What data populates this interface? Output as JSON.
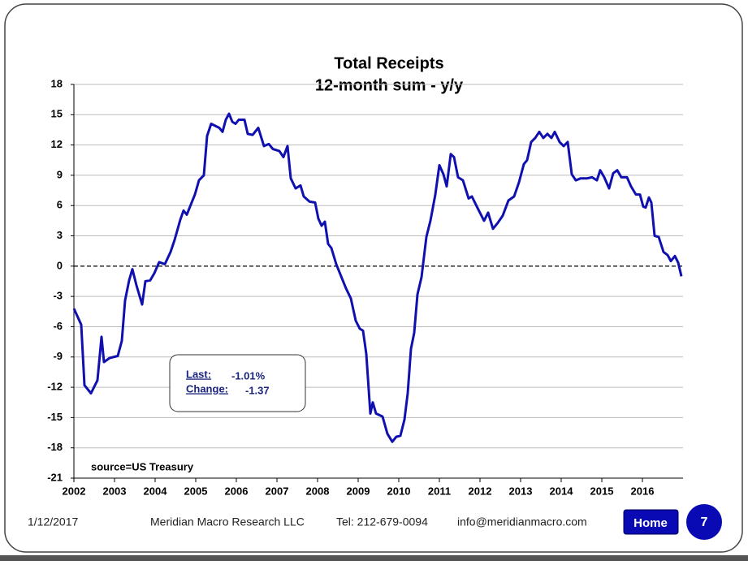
{
  "chart_data": {
    "type": "line",
    "title": [
      "Total Receipts",
      "12-month sum -  y/y"
    ],
    "source": "source=US Treasury",
    "annotation": {
      "last_label": "Last:",
      "last_value": "-1.01%",
      "change_label": "Change:",
      "change_value": "-1.37"
    },
    "series": [
      {
        "name": "Total Receipts",
        "color": "#1010b0",
        "x": [
          2002.0,
          2002.18,
          2002.26,
          2002.42,
          2002.58,
          2002.68,
          2002.74,
          2002.88,
          2003.08,
          2003.18,
          2003.26,
          2003.36,
          2003.44,
          2003.54,
          2003.68,
          2003.76,
          2003.88,
          2003.98,
          2004.1,
          2004.24,
          2004.38,
          2004.48,
          2004.62,
          2004.7,
          2004.78,
          2004.98,
          2005.08,
          2005.2,
          2005.28,
          2005.38,
          2005.58,
          2005.66,
          2005.74,
          2005.82,
          2005.9,
          2005.98,
          2006.06,
          2006.2,
          2006.28,
          2006.4,
          2006.54,
          2006.68,
          2006.8,
          2006.9,
          2007.06,
          2007.16,
          2007.26,
          2007.34,
          2007.46,
          2007.58,
          2007.66,
          2007.8,
          2007.94,
          2008.02,
          2008.1,
          2008.18,
          2008.26,
          2008.34,
          2008.46,
          2008.58,
          2008.7,
          2008.82,
          2008.94,
          2009.04,
          2009.12,
          2009.2,
          2009.3,
          2009.36,
          2009.44,
          2009.6,
          2009.72,
          2009.84,
          2009.94,
          2010.04,
          2010.14,
          2010.22,
          2010.3,
          2010.38,
          2010.46,
          2010.56,
          2010.68,
          2010.78,
          2010.9,
          2011.0,
          2011.1,
          2011.18,
          2011.28,
          2011.36,
          2011.46,
          2011.58,
          2011.72,
          2011.8,
          2011.96,
          2012.1,
          2012.2,
          2012.32,
          2012.44,
          2012.56,
          2012.7,
          2012.84,
          2012.96,
          2013.08,
          2013.16,
          2013.26,
          2013.36,
          2013.46,
          2013.56,
          2013.66,
          2013.76,
          2013.84,
          2013.96,
          2014.06,
          2014.16,
          2014.26,
          2014.36,
          2014.48,
          2014.64,
          2014.76,
          2014.88,
          2014.96,
          2015.06,
          2015.18,
          2015.28,
          2015.38,
          2015.48,
          2015.62,
          2015.72,
          2015.84,
          2015.94,
          2016.02,
          2016.08,
          2016.16,
          2016.22,
          2016.3,
          2016.4,
          2016.52,
          2016.62,
          2016.7,
          2016.8,
          2016.88,
          2016.96
        ],
        "values": [
          -4.2,
          -5.8,
          -11.8,
          -12.6,
          -11.3,
          -7,
          -9.5,
          -9.1,
          -8.9,
          -7.4,
          -3.4,
          -1.4,
          -0.3,
          -1.9,
          -3.8,
          -1.5,
          -1.4,
          -0.7,
          0.4,
          0.2,
          1.4,
          2.6,
          4.6,
          5.5,
          5.1,
          7.1,
          8.5,
          9,
          12.9,
          14.1,
          13.7,
          13.3,
          14.5,
          15.1,
          14.3,
          14.1,
          14.5,
          14.5,
          13.1,
          13,
          13.7,
          11.9,
          12.1,
          11.6,
          11.4,
          10.8,
          11.9,
          8.7,
          7.7,
          8,
          6.9,
          6.4,
          6.3,
          4.7,
          4,
          4.4,
          2.2,
          1.8,
          0.2,
          -1,
          -2.2,
          -3.2,
          -5.4,
          -6.2,
          -6.4,
          -8.7,
          -14.6,
          -13.5,
          -14.6,
          -14.9,
          -16.6,
          -17.4,
          -16.9,
          -16.8,
          -15.2,
          -12.6,
          -8.2,
          -6.6,
          -2.8,
          -1.1,
          2.9,
          4.5,
          7.1,
          10,
          9.1,
          7.9,
          11.1,
          10.8,
          8.8,
          8.5,
          6.7,
          6.9,
          5.6,
          4.5,
          5.3,
          3.7,
          4.3,
          5,
          6.5,
          6.9,
          8.3,
          10.1,
          10.5,
          12.3,
          12.7,
          13.3,
          12.7,
          13.1,
          12.7,
          13.3,
          12.3,
          11.9,
          12.3,
          9.1,
          8.5,
          8.7,
          8.7,
          8.8,
          8.5,
          9.5,
          8.8,
          7.7,
          9.2,
          9.5,
          8.8,
          8.8,
          7.9,
          7.1,
          7.1,
          5.9,
          5.8,
          6.8,
          6.3,
          3,
          2.9,
          1.4,
          1.1,
          0.5,
          1,
          0.36,
          -1.01
        ]
      }
    ],
    "xlim": [
      2002,
      2017
    ],
    "xticks": [
      2002,
      2003,
      2004,
      2005,
      2006,
      2007,
      2008,
      2009,
      2010,
      2011,
      2012,
      2013,
      2014,
      2015,
      2016
    ],
    "ylim": [
      -21,
      18
    ],
    "yticks": [
      -21,
      -18,
      -15,
      -12,
      -9,
      -6,
      -3,
      0,
      3,
      6,
      9,
      12,
      15,
      18
    ],
    "grid": true,
    "zero_line": "dashed"
  },
  "footer": {
    "date": "1/12/2017",
    "company": "Meridian Macro Research LLC",
    "tel": "Tel: 212-679-0094",
    "email": "info@meridianmacro.com",
    "button": "Home",
    "page": "7"
  }
}
